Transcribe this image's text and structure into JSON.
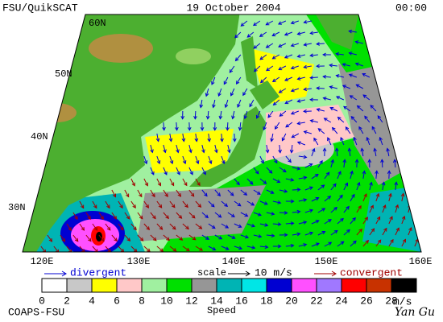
{
  "header": {
    "title": "FSU/QuikSCAT",
    "date": "19 October 2004",
    "time": "00:00"
  },
  "map": {
    "lat_labels": [
      "60N",
      "50N",
      "40N",
      "30N"
    ],
    "lon_labels": [
      "120E",
      "130E",
      "140E",
      "150E",
      "160E"
    ]
  },
  "legend": {
    "divergent": "divergent",
    "scale": "scale",
    "scale_value": "10 m/s",
    "convergent": "convergent"
  },
  "colorbar": {
    "ticks": [
      0,
      2,
      4,
      6,
      8,
      10,
      12,
      14,
      16,
      18,
      20,
      22,
      24,
      26,
      28
    ],
    "colors": [
      "#ffffff",
      "#c8c8c8",
      "#ffff00",
      "#ffc8c8",
      "#a0f0a0",
      "#00e000",
      "#969696",
      "#00b4b4",
      "#00e6e6",
      "#0000d2",
      "#ff50ff",
      "#a078ff",
      "#ff0000",
      "#c83200",
      "#000000"
    ],
    "unit": "m/s",
    "title": "Speed"
  },
  "footer": {
    "org": "COAPS-FSU",
    "signature": "Yan Gu"
  }
}
